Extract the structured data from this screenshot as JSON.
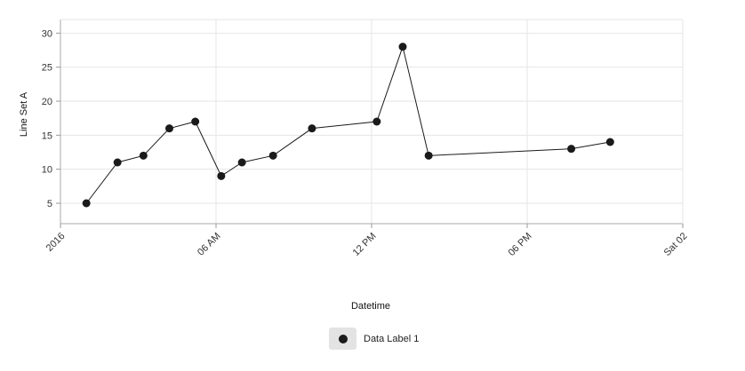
{
  "chart_data": {
    "type": "line",
    "xlabel": "Datetime",
    "ylabel": "Line Set A",
    "x_tick_labels": [
      "2016",
      "06 AM",
      "12 PM",
      "06 PM",
      "Sat 02"
    ],
    "x_tick_hours": [
      0,
      6,
      12,
      18,
      24
    ],
    "x_range_hours": [
      0,
      24
    ],
    "y_ticks": [
      5,
      10,
      15,
      20,
      25,
      30
    ],
    "y_range": [
      2,
      32
    ],
    "grid": true,
    "legend_position": "bottom-center",
    "series": [
      {
        "name": "Data Label 1",
        "color": "#1a1a1a",
        "x_hours": [
          1.0,
          2.2,
          3.2,
          4.2,
          5.2,
          6.2,
          7.0,
          8.2,
          9.7,
          12.2,
          13.2,
          14.2,
          19.7,
          21.2
        ],
        "values": [
          5,
          11,
          12,
          16,
          17,
          9,
          11,
          12,
          16,
          17,
          28,
          12,
          13,
          14
        ]
      }
    ]
  }
}
